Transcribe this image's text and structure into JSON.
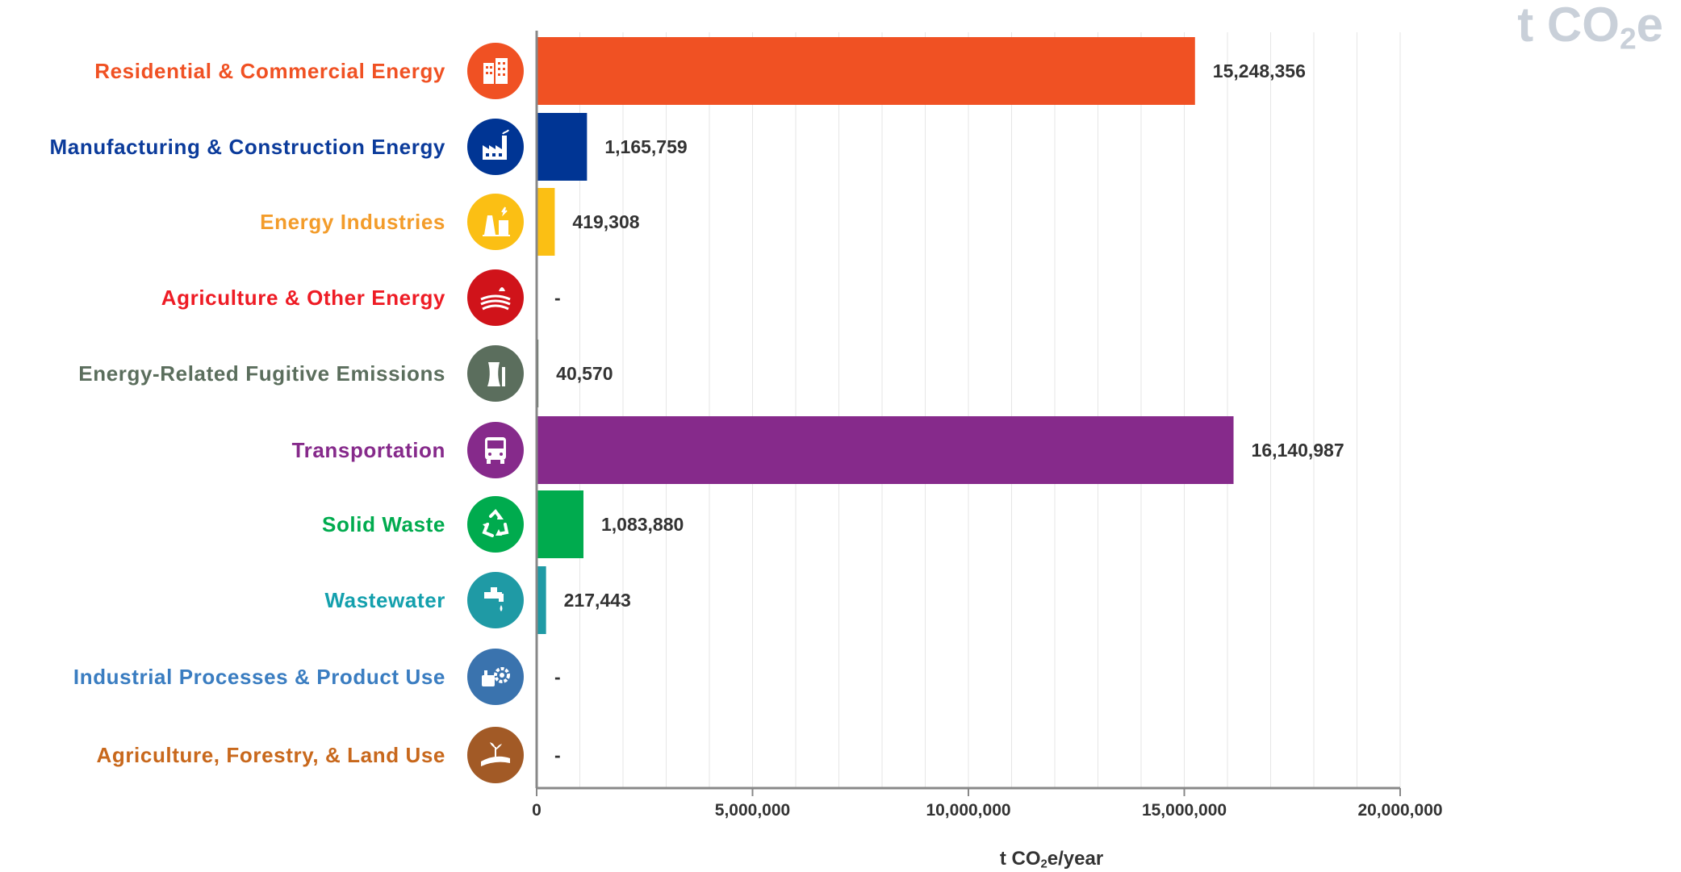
{
  "unit_badge": {
    "prefix": "t CO",
    "sub": "2",
    "suffix": "e"
  },
  "axis_title": {
    "prefix": "t CO",
    "sub": "2",
    "suffix": "e/year"
  },
  "chart_data": {
    "type": "bar",
    "orientation": "horizontal",
    "categories": [
      "Residential & Commercial Energy",
      "Manufacturing & Construction Energy",
      "Energy Industries",
      "Agriculture & Other Energy",
      "Energy-Related Fugitive Emissions",
      "Transportation",
      "Solid Waste",
      "Wastewater",
      "Industrial Processes & Product Use",
      "Agriculture, Forestry, & Land Use"
    ],
    "values": [
      15248356,
      1165759,
      419308,
      0,
      40570,
      16140987,
      1083880,
      217443,
      0,
      0
    ],
    "value_labels": [
      "15,248,356",
      "1,165,759",
      "419,308",
      "-",
      "40,570",
      "16,140,987",
      "1,083,880",
      "217,443",
      "-",
      "-"
    ],
    "colors": [
      "#f05123",
      "#003594",
      "#fbbf14",
      "#d0131a",
      "#5b6e5d",
      "#862a8b",
      "#00ab4e",
      "#1f9aa5",
      "#3a73ae",
      "#a25a26"
    ],
    "label_colors": [
      "#f05123",
      "#0b3b9b",
      "#f39c2a",
      "#ee1c25",
      "#5b6e5d",
      "#862a8b",
      "#00ab4e",
      "#14a0ad",
      "#3a7dc1",
      "#c8681c"
    ],
    "icons": [
      "buildings-icon",
      "factory-icon",
      "power-plant-icon",
      "tractor-field-icon",
      "cooling-tower-icon",
      "bus-icon",
      "recycle-icon",
      "faucet-icon",
      "gear-process-icon",
      "land-use-icon"
    ],
    "xlim": [
      0,
      20000000
    ],
    "xticks": [
      0,
      5000000,
      10000000,
      15000000,
      20000000
    ],
    "xtick_labels": [
      "0",
      "5,000,000",
      "10,000,000",
      "15,000,000",
      "20,000,000"
    ],
    "grid": "vertical minor lines",
    "legend": "none"
  }
}
